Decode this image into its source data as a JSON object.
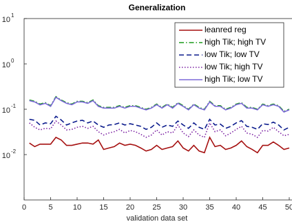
{
  "chart_data": {
    "type": "line",
    "title": "Generalization",
    "x_label": "validation data set",
    "x": [
      1,
      2,
      3,
      4,
      5,
      6,
      7,
      8,
      9,
      10,
      11,
      12,
      13,
      14,
      15,
      16,
      17,
      18,
      19,
      20,
      21,
      22,
      23,
      24,
      25,
      26,
      27,
      28,
      29,
      30,
      31,
      32,
      33,
      34,
      35,
      36,
      37,
      38,
      39,
      40,
      41,
      42,
      43,
      44,
      45,
      46,
      47,
      48,
      49,
      50
    ],
    "xlim": [
      0,
      50
    ],
    "xticks": [
      0,
      5,
      10,
      15,
      20,
      25,
      30,
      35,
      40,
      45,
      50
    ],
    "ylim": [
      0.001,
      10
    ],
    "log_y": true,
    "yticks": [
      {
        "value": 0.01,
        "label": "10",
        "exponent": "-2"
      },
      {
        "value": 0.1,
        "label": "10",
        "exponent": "-1"
      },
      {
        "value": 1,
        "label": "10",
        "exponent": "0"
      },
      {
        "value": 10,
        "label": "10",
        "exponent": "1"
      }
    ],
    "legend": "upper right",
    "series": [
      {
        "name": "leanred reg",
        "color": "#a50f0f",
        "linestyle": "-",
        "values": [
          0.018,
          0.015,
          0.017,
          0.017,
          0.017,
          0.024,
          0.021,
          0.016,
          0.016,
          0.017,
          0.018,
          0.018,
          0.017,
          0.021,
          0.013,
          0.014,
          0.015,
          0.018,
          0.016,
          0.017,
          0.016,
          0.014,
          0.012,
          0.013,
          0.016,
          0.013,
          0.014,
          0.015,
          0.02,
          0.014,
          0.012,
          0.016,
          0.012,
          0.011,
          0.024,
          0.015,
          0.016,
          0.013,
          0.014,
          0.016,
          0.02,
          0.015,
          0.013,
          0.011,
          0.016,
          0.016,
          0.019,
          0.016,
          0.013,
          0.014
        ]
      },
      {
        "name": "high Tik; high TV",
        "color": "#1a9a1a",
        "linestyle": "-.",
        "values": [
          0.16,
          0.15,
          0.13,
          0.14,
          0.12,
          0.19,
          0.16,
          0.14,
          0.13,
          0.15,
          0.15,
          0.14,
          0.16,
          0.12,
          0.11,
          0.11,
          0.11,
          0.12,
          0.11,
          0.12,
          0.12,
          0.11,
          0.1,
          0.11,
          0.13,
          0.11,
          0.13,
          0.11,
          0.14,
          0.12,
          0.1,
          0.13,
          0.11,
          0.1,
          0.15,
          0.12,
          0.12,
          0.1,
          0.11,
          0.13,
          0.14,
          0.11,
          0.11,
          0.1,
          0.13,
          0.12,
          0.13,
          0.12,
          0.09,
          0.1
        ]
      },
      {
        "name": "low Tik; low TV",
        "color": "#0a1a8c",
        "linestyle": "--",
        "values": [
          0.06,
          0.057,
          0.045,
          0.05,
          0.048,
          0.07,
          0.058,
          0.045,
          0.05,
          0.055,
          0.057,
          0.05,
          0.055,
          0.045,
          0.04,
          0.045,
          0.046,
          0.05,
          0.045,
          0.048,
          0.045,
          0.042,
          0.036,
          0.04,
          0.05,
          0.04,
          0.045,
          0.042,
          0.055,
          0.045,
          0.038,
          0.05,
          0.04,
          0.036,
          0.06,
          0.045,
          0.047,
          0.038,
          0.042,
          0.05,
          0.056,
          0.042,
          0.04,
          0.036,
          0.048,
          0.046,
          0.052,
          0.045,
          0.035,
          0.04
        ]
      },
      {
        "name": "low Tik; high TV",
        "color": "#7a1fa2",
        "linestyle": ":",
        "values": [
          0.05,
          0.04,
          0.035,
          0.038,
          0.037,
          0.055,
          0.045,
          0.035,
          0.036,
          0.04,
          0.042,
          0.038,
          0.042,
          0.032,
          0.027,
          0.03,
          0.032,
          0.036,
          0.03,
          0.034,
          0.032,
          0.028,
          0.024,
          0.027,
          0.035,
          0.027,
          0.032,
          0.03,
          0.045,
          0.03,
          0.025,
          0.035,
          0.027,
          0.024,
          0.05,
          0.032,
          0.035,
          0.026,
          0.03,
          0.036,
          0.042,
          0.03,
          0.028,
          0.024,
          0.034,
          0.033,
          0.04,
          0.032,
          0.026,
          0.028
        ]
      },
      {
        "name": "high Tik; low TV",
        "color": "#7b68d8",
        "linestyle": "-",
        "values": [
          0.155,
          0.145,
          0.125,
          0.135,
          0.116,
          0.184,
          0.155,
          0.135,
          0.126,
          0.145,
          0.145,
          0.135,
          0.155,
          0.116,
          0.106,
          0.106,
          0.106,
          0.116,
          0.106,
          0.116,
          0.116,
          0.106,
          0.097,
          0.106,
          0.126,
          0.106,
          0.126,
          0.106,
          0.135,
          0.116,
          0.097,
          0.126,
          0.106,
          0.097,
          0.145,
          0.116,
          0.116,
          0.097,
          0.106,
          0.126,
          0.135,
          0.106,
          0.106,
          0.097,
          0.126,
          0.116,
          0.126,
          0.116,
          0.087,
          0.097
        ]
      }
    ]
  }
}
